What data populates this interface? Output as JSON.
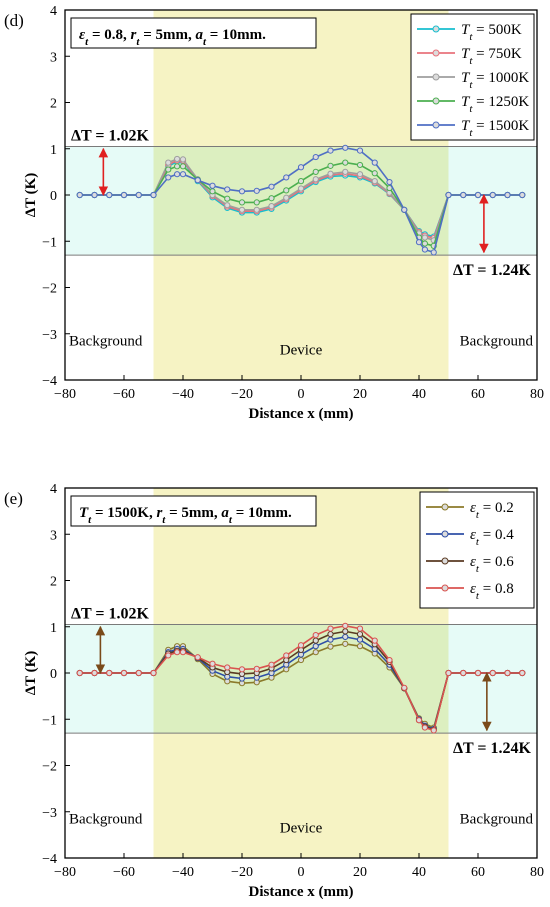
{
  "chart_data": [
    {
      "type": "line",
      "panel_label": "(d)",
      "param_box": "εt = 0.8, rt = 5mm, at = 10mm.",
      "xlabel": "Distance x (mm)",
      "ylabel": "ΔT (K)",
      "xlim": [
        -80,
        80
      ],
      "ylim": [
        -4,
        4
      ],
      "xticks": [
        "-80",
        "-60",
        "-40",
        "-20",
        "0",
        "20",
        "40",
        "60",
        "80"
      ],
      "yticks": [
        "4",
        "3",
        "2",
        "1",
        "0",
        "-1",
        "-2",
        "-3",
        "-4"
      ],
      "device_region": [
        -50,
        50
      ],
      "band": [
        -1.3,
        1.05
      ],
      "region_labels": {
        "left": "Background",
        "center": "Device",
        "right": "Background"
      },
      "annotations": [
        {
          "text": "ΔT = 1.02K",
          "x": -67,
          "y0": 1.0,
          "y1": 0.0
        },
        {
          "text": "ΔT = 1.24K",
          "x": 62,
          "y0": 0.0,
          "y1": -1.24
        }
      ],
      "legend_position": "top-right",
      "x": [
        -75,
        -70,
        -65,
        -60,
        -55,
        -50,
        -45,
        -42,
        -40,
        -35,
        -30,
        -25,
        -20,
        -15,
        -10,
        -5,
        0,
        5,
        10,
        15,
        20,
        25,
        30,
        35,
        40,
        42,
        45,
        50,
        55,
        60,
        65,
        70,
        75
      ],
      "series": [
        {
          "name": "Tt = 500K",
          "color": "#17becf",
          "values": [
            0,
            0,
            0,
            0,
            0,
            0,
            0.62,
            0.72,
            0.72,
            0.3,
            -0.05,
            -0.28,
            -0.38,
            -0.38,
            -0.3,
            -0.12,
            0.08,
            0.28,
            0.4,
            0.42,
            0.38,
            0.25,
            0.02,
            -0.32,
            -0.78,
            -0.85,
            -0.9,
            0,
            0,
            0,
            0,
            0,
            0
          ]
        },
        {
          "name": "Tt = 750K",
          "color": "#e8727b",
          "values": [
            0,
            0,
            0,
            0,
            0,
            0,
            0.65,
            0.75,
            0.74,
            0.32,
            -0.02,
            -0.25,
            -0.35,
            -0.35,
            -0.27,
            -0.09,
            0.11,
            0.31,
            0.43,
            0.46,
            0.41,
            0.27,
            0.03,
            -0.32,
            -0.8,
            -0.88,
            -0.93,
            0,
            0,
            0,
            0,
            0,
            0
          ]
        },
        {
          "name": "Tt = 1000K",
          "color": "#9e9e9e",
          "values": [
            0,
            0,
            0,
            0,
            0,
            0,
            0.7,
            0.78,
            0.77,
            0.34,
            0.0,
            -0.22,
            -0.32,
            -0.32,
            -0.24,
            -0.06,
            0.14,
            0.34,
            0.46,
            0.5,
            0.45,
            0.3,
            0.05,
            -0.32,
            -0.83,
            -0.92,
            -0.98,
            0,
            0,
            0,
            0,
            0,
            0
          ]
        },
        {
          "name": "Tt = 1250K",
          "color": "#4caf50",
          "values": [
            0,
            0,
            0,
            0,
            0,
            0,
            0.55,
            0.62,
            0.62,
            0.33,
            0.08,
            -0.08,
            -0.16,
            -0.16,
            -0.07,
            0.1,
            0.3,
            0.5,
            0.63,
            0.7,
            0.65,
            0.47,
            0.15,
            -0.32,
            -0.92,
            -1.05,
            -1.1,
            0,
            0,
            0,
            0,
            0,
            0
          ]
        },
        {
          "name": "Tt = 1500K",
          "color": "#4f6fc4",
          "values": [
            0,
            0,
            0,
            0,
            0,
            0,
            0.38,
            0.45,
            0.45,
            0.32,
            0.2,
            0.12,
            0.08,
            0.09,
            0.18,
            0.38,
            0.6,
            0.82,
            0.96,
            1.02,
            0.96,
            0.7,
            0.28,
            -0.32,
            -1.02,
            -1.18,
            -1.24,
            0,
            0,
            0,
            0,
            0,
            0
          ]
        }
      ]
    },
    {
      "type": "line",
      "panel_label": "(e)",
      "param_box": "Tt = 1500K, rt = 5mm, at = 10mm.",
      "xlabel": "Distance x (mm)",
      "ylabel": "ΔT (K)",
      "xlim": [
        -80,
        80
      ],
      "ylim": [
        -4,
        4
      ],
      "xticks": [
        "-80",
        "-60",
        "-40",
        "-20",
        "0",
        "20",
        "40",
        "60",
        "80"
      ],
      "yticks": [
        "4",
        "3",
        "2",
        "1",
        "0",
        "-1",
        "-2",
        "-3",
        "-4"
      ],
      "device_region": [
        -50,
        50
      ],
      "band": [
        -1.3,
        1.05
      ],
      "region_labels": {
        "left": "Background",
        "center": "Device",
        "right": "Background"
      },
      "annotations": [
        {
          "text": "ΔT = 1.02K",
          "x": -68,
          "y0": 1.0,
          "y1": 0.0
        },
        {
          "text": "ΔT = 1.24K",
          "x": 63,
          "y0": 0.0,
          "y1": -1.24
        }
      ],
      "legend_position": "top-right",
      "x": [
        -75,
        -70,
        -65,
        -60,
        -55,
        -50,
        -45,
        -42,
        -40,
        -35,
        -30,
        -25,
        -20,
        -15,
        -10,
        -5,
        0,
        5,
        10,
        15,
        20,
        25,
        30,
        35,
        40,
        42,
        45,
        50,
        55,
        60,
        65,
        70,
        75
      ],
      "series": [
        {
          "name": "εt = 0.2",
          "color": "#8b7a2a",
          "values": [
            0,
            0,
            0,
            0,
            0,
            0,
            0.5,
            0.58,
            0.58,
            0.3,
            -0.02,
            -0.18,
            -0.22,
            -0.2,
            -0.1,
            0.08,
            0.28,
            0.45,
            0.57,
            0.63,
            0.58,
            0.42,
            0.12,
            -0.33,
            -0.98,
            -1.1,
            -1.18,
            0,
            0,
            0,
            0,
            0,
            0
          ]
        },
        {
          "name": "εt = 0.4",
          "color": "#2f4fa6",
          "values": [
            0,
            0,
            0,
            0,
            0,
            0,
            0.45,
            0.52,
            0.52,
            0.32,
            0.05,
            -0.08,
            -0.12,
            -0.1,
            0.0,
            0.18,
            0.4,
            0.58,
            0.72,
            0.78,
            0.72,
            0.52,
            0.18,
            -0.33,
            -1.0,
            -1.14,
            -1.21,
            0,
            0,
            0,
            0,
            0,
            0
          ]
        },
        {
          "name": "εt = 0.6",
          "color": "#5a3a22",
          "values": [
            0,
            0,
            0,
            0,
            0,
            0,
            0.42,
            0.48,
            0.48,
            0.33,
            0.12,
            0.02,
            -0.02,
            0.0,
            0.1,
            0.28,
            0.5,
            0.7,
            0.84,
            0.9,
            0.84,
            0.62,
            0.24,
            -0.33,
            -1.02,
            -1.16,
            -1.23,
            0,
            0,
            0,
            0,
            0,
            0
          ]
        },
        {
          "name": "εt = 0.8",
          "color": "#d9534f",
          "values": [
            0,
            0,
            0,
            0,
            0,
            0,
            0.38,
            0.45,
            0.45,
            0.34,
            0.2,
            0.12,
            0.08,
            0.09,
            0.18,
            0.38,
            0.6,
            0.82,
            0.96,
            1.02,
            0.96,
            0.7,
            0.28,
            -0.32,
            -1.02,
            -1.18,
            -1.24,
            0,
            0,
            0,
            0,
            0,
            0
          ]
        }
      ]
    }
  ]
}
